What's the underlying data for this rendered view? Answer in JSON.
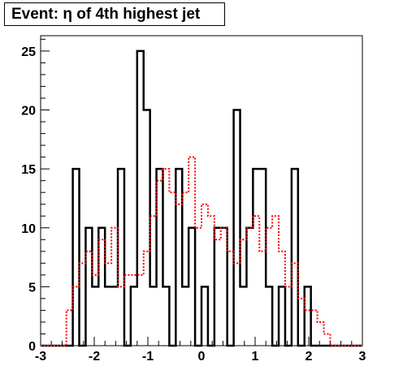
{
  "chart_data": {
    "type": "histogram",
    "title": "Event: η of 4th highest jet",
    "xlabel": "",
    "ylabel": "",
    "xlim": [
      -3,
      3
    ],
    "ylim": [
      0,
      26.3
    ],
    "x_ticks": [
      "-3",
      "-2",
      "-1",
      "0",
      "1",
      "2",
      "3"
    ],
    "y_ticks": [
      "0",
      "5",
      "10",
      "15",
      "20",
      "25"
    ],
    "bins": 50,
    "grid": false,
    "legend": "none",
    "series": [
      {
        "style": "solid",
        "color": "#000000",
        "values": [
          0,
          0,
          0,
          0,
          0,
          15,
          0,
          10,
          5,
          10,
          5,
          5,
          15,
          0,
          5,
          25,
          20,
          5,
          15,
          5,
          0,
          15,
          5,
          10,
          0,
          5,
          0,
          10,
          10,
          0,
          20,
          5,
          10,
          15,
          15,
          5,
          0,
          5,
          0,
          15,
          0,
          5,
          0,
          0,
          0,
          0,
          0,
          0,
          0,
          0
        ]
      },
      {
        "style": "dotted",
        "color": "#ff0000",
        "values": [
          0,
          0,
          0,
          0,
          3,
          5,
          7,
          8,
          6,
          9,
          7,
          10,
          5,
          6,
          6,
          6,
          8,
          11,
          14,
          15,
          13,
          12,
          13,
          16,
          10,
          12,
          11,
          9,
          10,
          8,
          7,
          9,
          10,
          11,
          8,
          10,
          11,
          8,
          5,
          7,
          4,
          3,
          3,
          2,
          1,
          0,
          0,
          0,
          0,
          0
        ]
      }
    ]
  }
}
